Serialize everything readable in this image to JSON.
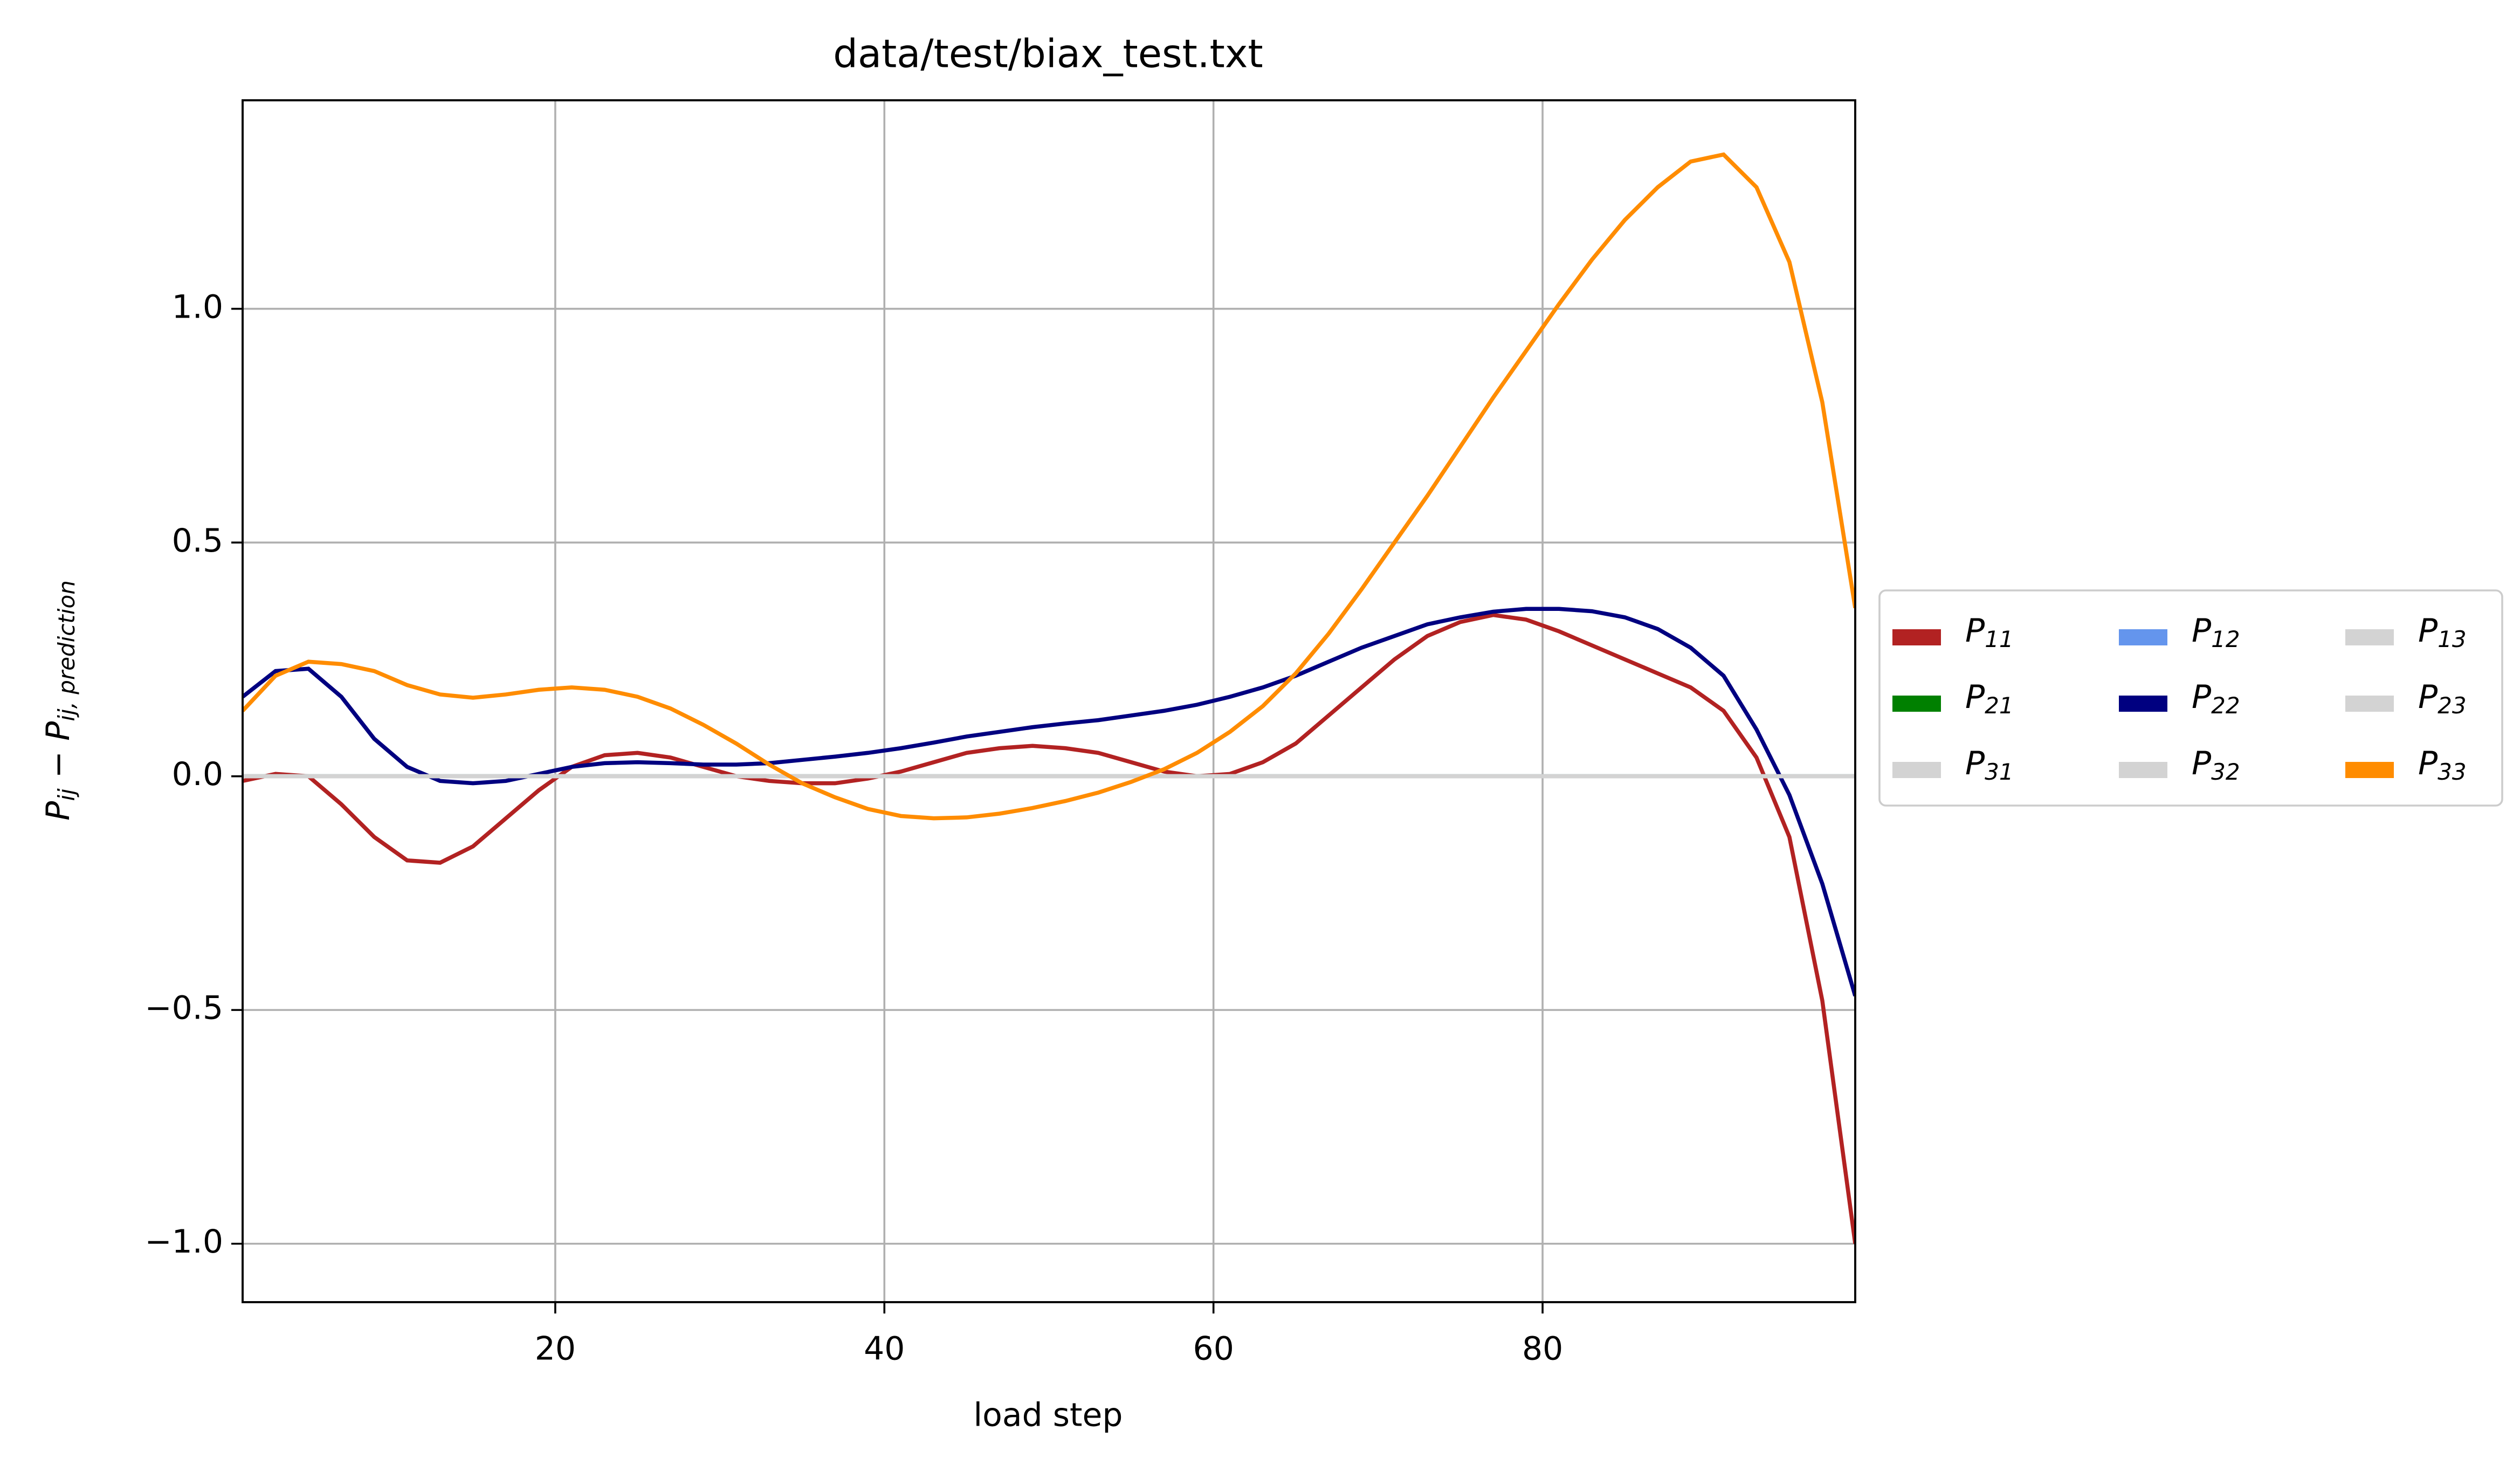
{
  "chart_data": {
    "type": "line",
    "title": "data/test/biax_test.txt",
    "xlabel": "load step",
    "ylabel": "Pij − Pij, prediction",
    "x": [
      1,
      3,
      5,
      7,
      9,
      11,
      13,
      15,
      17,
      19,
      21,
      23,
      25,
      27,
      29,
      31,
      33,
      35,
      37,
      39,
      41,
      43,
      45,
      47,
      49,
      51,
      53,
      55,
      57,
      59,
      61,
      63,
      65,
      67,
      69,
      71,
      73,
      75,
      77,
      79,
      81,
      83,
      85,
      87,
      89,
      91,
      93,
      95,
      97,
      99
    ],
    "series": [
      {
        "name": "P11",
        "color": "#b22222",
        "values": [
          -0.01,
          0.005,
          0.0,
          -0.06,
          -0.13,
          -0.18,
          -0.185,
          -0.15,
          -0.09,
          -0.03,
          0.02,
          0.045,
          0.05,
          0.04,
          0.02,
          0.0,
          -0.01,
          -0.015,
          -0.015,
          -0.005,
          0.01,
          0.03,
          0.05,
          0.06,
          0.065,
          0.06,
          0.05,
          0.03,
          0.01,
          0.0,
          0.005,
          0.03,
          0.07,
          0.13,
          0.19,
          0.25,
          0.3,
          0.33,
          0.345,
          0.335,
          0.31,
          0.28,
          0.25,
          0.22,
          0.19,
          0.14,
          0.04,
          -0.13,
          -0.48,
          -1.0
        ]
      },
      {
        "name": "P21",
        "color": "#008000",
        "values": [
          0,
          0,
          0,
          0,
          0,
          0,
          0,
          0,
          0,
          0,
          0,
          0,
          0,
          0,
          0,
          0,
          0,
          0,
          0,
          0,
          0,
          0,
          0,
          0,
          0,
          0,
          0,
          0,
          0,
          0,
          0,
          0,
          0,
          0,
          0,
          0,
          0,
          0,
          0,
          0,
          0,
          0,
          0,
          0,
          0,
          0,
          0,
          0,
          0,
          0
        ]
      },
      {
        "name": "P31",
        "color": "#d3d3d3",
        "values": [
          0,
          0,
          0,
          0,
          0,
          0,
          0,
          0,
          0,
          0,
          0,
          0,
          0,
          0,
          0,
          0,
          0,
          0,
          0,
          0,
          0,
          0,
          0,
          0,
          0,
          0,
          0,
          0,
          0,
          0,
          0,
          0,
          0,
          0,
          0,
          0,
          0,
          0,
          0,
          0,
          0,
          0,
          0,
          0,
          0,
          0,
          0,
          0,
          0,
          0
        ]
      },
      {
        "name": "P12",
        "color": "#6495ed",
        "values": [
          0,
          0,
          0,
          0,
          0,
          0,
          0,
          0,
          0,
          0,
          0,
          0,
          0,
          0,
          0,
          0,
          0,
          0,
          0,
          0,
          0,
          0,
          0,
          0,
          0,
          0,
          0,
          0,
          0,
          0,
          0,
          0,
          0,
          0,
          0,
          0,
          0,
          0,
          0,
          0,
          0,
          0,
          0,
          0,
          0,
          0,
          0,
          0,
          0,
          0
        ]
      },
      {
        "name": "P22",
        "color": "#000080",
        "values": [
          0.17,
          0.225,
          0.23,
          0.17,
          0.08,
          0.02,
          -0.01,
          -0.015,
          -0.01,
          0.005,
          0.02,
          0.028,
          0.03,
          0.028,
          0.025,
          0.025,
          0.028,
          0.035,
          0.042,
          0.05,
          0.06,
          0.072,
          0.085,
          0.095,
          0.105,
          0.113,
          0.12,
          0.13,
          0.14,
          0.153,
          0.17,
          0.19,
          0.215,
          0.245,
          0.275,
          0.3,
          0.325,
          0.34,
          0.352,
          0.358,
          0.358,
          0.353,
          0.34,
          0.315,
          0.275,
          0.215,
          0.1,
          -0.04,
          -0.23,
          -0.47
        ]
      },
      {
        "name": "P32",
        "color": "#d3d3d3",
        "values": [
          0,
          0,
          0,
          0,
          0,
          0,
          0,
          0,
          0,
          0,
          0,
          0,
          0,
          0,
          0,
          0,
          0,
          0,
          0,
          0,
          0,
          0,
          0,
          0,
          0,
          0,
          0,
          0,
          0,
          0,
          0,
          0,
          0,
          0,
          0,
          0,
          0,
          0,
          0,
          0,
          0,
          0,
          0,
          0,
          0,
          0,
          0,
          0,
          0,
          0
        ]
      },
      {
        "name": "P13",
        "color": "#d3d3d3",
        "values": [
          0,
          0,
          0,
          0,
          0,
          0,
          0,
          0,
          0,
          0,
          0,
          0,
          0,
          0,
          0,
          0,
          0,
          0,
          0,
          0,
          0,
          0,
          0,
          0,
          0,
          0,
          0,
          0,
          0,
          0,
          0,
          0,
          0,
          0,
          0,
          0,
          0,
          0,
          0,
          0,
          0,
          0,
          0,
          0,
          0,
          0,
          0,
          0,
          0,
          0
        ]
      },
      {
        "name": "P23",
        "color": "#d3d3d3",
        "values": [
          0,
          0,
          0,
          0,
          0,
          0,
          0,
          0,
          0,
          0,
          0,
          0,
          0,
          0,
          0,
          0,
          0,
          0,
          0,
          0,
          0,
          0,
          0,
          0,
          0,
          0,
          0,
          0,
          0,
          0,
          0,
          0,
          0,
          0,
          0,
          0,
          0,
          0,
          0,
          0,
          0,
          0,
          0,
          0,
          0,
          0,
          0,
          0,
          0,
          0
        ]
      },
      {
        "name": "P33",
        "color": "#ff8c00",
        "values": [
          0.14,
          0.215,
          0.245,
          0.24,
          0.225,
          0.195,
          0.175,
          0.168,
          0.175,
          0.185,
          0.19,
          0.185,
          0.17,
          0.145,
          0.11,
          0.07,
          0.025,
          -0.015,
          -0.045,
          -0.07,
          -0.085,
          -0.09,
          -0.088,
          -0.08,
          -0.068,
          -0.053,
          -0.035,
          -0.012,
          0.015,
          0.05,
          0.095,
          0.15,
          0.22,
          0.305,
          0.4,
          0.5,
          0.6,
          0.705,
          0.81,
          0.91,
          1.01,
          1.105,
          1.19,
          1.26,
          1.315,
          1.33,
          1.26,
          1.1,
          0.8,
          0.36
        ]
      }
    ],
    "xlim": [
      1,
      99
    ],
    "xticks": [
      20,
      40,
      60,
      80
    ],
    "ylim": [
      -1.125,
      1.446
    ],
    "yticks": [
      {
        "value": -1.0,
        "label": "−1.0"
      },
      {
        "value": -0.5,
        "label": "−0.5"
      },
      {
        "value": 0,
        "label": "0.0"
      },
      {
        "value": 0.5,
        "label": "0.5"
      },
      {
        "value": 1.0,
        "label": "1.0"
      }
    ],
    "grid": true,
    "legend": "center left outside",
    "legend_columns": 3
  }
}
